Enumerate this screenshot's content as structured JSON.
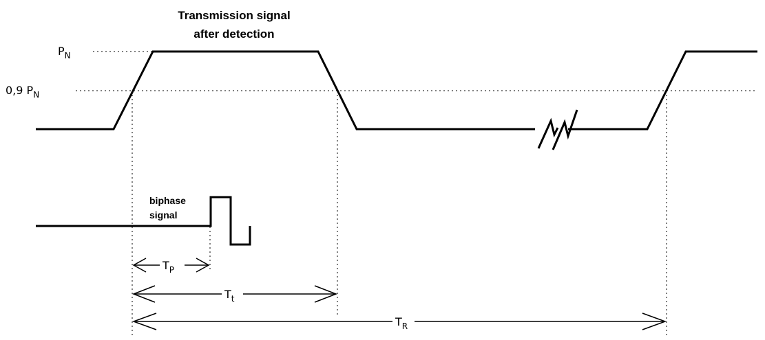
{
  "title": {
    "line1": "Transmission signal",
    "line2": "after detection"
  },
  "levels": {
    "pn_main": "P",
    "pn_sub": "N",
    "p09_main": "0,9 P",
    "p09_sub": "N"
  },
  "biphase": {
    "line1": "biphase",
    "line2": "signal"
  },
  "intervals": {
    "tp_main": "T",
    "tp_sub": "P",
    "tt_main": "T",
    "tt_sub": "t",
    "tr_main": "T",
    "tr_sub": "R"
  }
}
